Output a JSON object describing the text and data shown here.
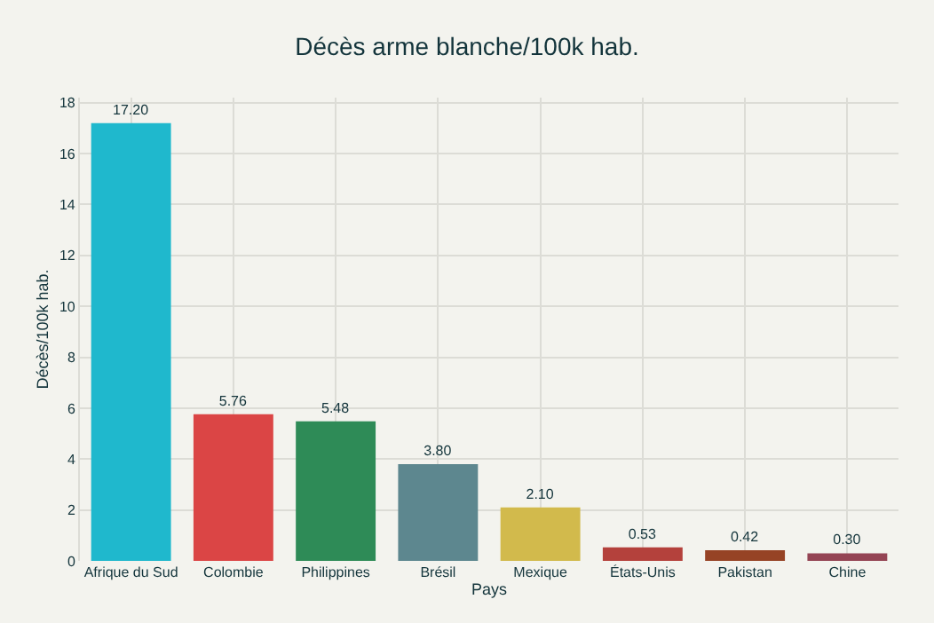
{
  "chart_data": {
    "type": "bar",
    "title": "Décès arme blanche/100k hab.",
    "xlabel": "Pays",
    "ylabel": "Décès/100k hab.",
    "categories": [
      "Afrique du Sud",
      "Colombie",
      "Philippines",
      "Brésil",
      "Mexique",
      "États-Unis",
      "Pakistan",
      "Chine"
    ],
    "values": [
      17.2,
      5.76,
      5.48,
      3.8,
      2.1,
      0.53,
      0.42,
      0.3
    ],
    "colors": [
      "#1fb8cd",
      "#db4545",
      "#2e8b57",
      "#5d878f",
      "#d2ba4c",
      "#b4413c",
      "#964325",
      "#944454"
    ],
    "value_labels": [
      "17.20",
      "5.76",
      "5.48",
      "3.80",
      "2.10",
      "0.53",
      "0.42",
      "0.30"
    ],
    "ylim": [
      0,
      18.2
    ],
    "yticks": [
      0,
      2,
      4,
      6,
      8,
      10,
      12,
      14,
      16,
      18
    ],
    "grid": true
  }
}
